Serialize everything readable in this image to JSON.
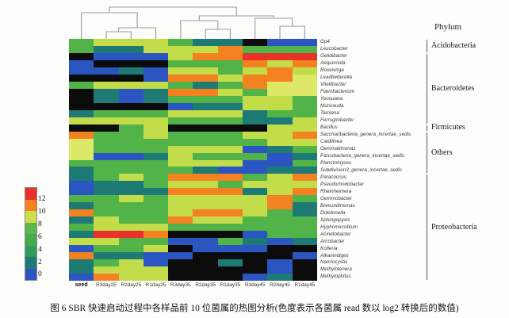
{
  "caption": "图 6   SBR 快速启动过程中各样品前 10 位菌属的热图分析(色度表示各菌属 read 数以 log2 转换后的数值)",
  "phylum_header": "Phylum",
  "chart_data": {
    "type": "heatmap",
    "title": "",
    "value_meaning": "log2 transformed read counts per genus",
    "columns": [
      "seed",
      "R3day25",
      "R2day25",
      "R1day25",
      "R3day35",
      "R2day35",
      "R1day35",
      "R3day45",
      "R2day45",
      "R1day45"
    ],
    "rows": [
      "Gp4",
      "Leucobacter",
      "Gelidibacter",
      "Aequorivita",
      "Roseivirga",
      "Leadbetterella",
      "Vitellibacter",
      "Flavobacterium",
      "Yeosuana",
      "Muricauda",
      "Tamlana",
      "Ferruginibacter",
      "Bacillus",
      "Saccharibacteria_genera_incertae_sedis",
      "Caldilinea",
      "Gemmatimonas",
      "Parcubacteria_genera_incertae_sedis",
      "Planctomyces",
      "Subdivision3_genera_incertae_sedis",
      "Paracoccus",
      "Pseudorhodobacter",
      "Rheinheimera",
      "Gemmobacter",
      "Brevundimonas",
      "Dokdonella",
      "Sphingopyxis",
      "Hyphomicrobium",
      "Acinetobacter",
      "Arcobacter",
      "Kofleria",
      "Alkanindiges",
      "Nannocystis",
      "Methylotenera",
      "Methylophilus"
    ],
    "matrix": [
      [
        "G",
        "LG",
        "LG",
        "LG",
        "G",
        "T",
        "T",
        "K",
        "B",
        "B"
      ],
      [
        "G",
        "T",
        "T",
        "LG",
        "LG",
        "LG",
        "O",
        "G",
        "G",
        "G"
      ],
      [
        "K",
        "B",
        "B",
        "B",
        "LG",
        "O",
        "O",
        "R",
        "R",
        "R"
      ],
      [
        "B",
        "K",
        "K",
        "K",
        "G",
        "G",
        "G",
        "O",
        "LG",
        "O"
      ],
      [
        "B",
        "B",
        "T",
        "B",
        "LG",
        "LG",
        "G",
        "LG",
        "O",
        "LG"
      ],
      [
        "K",
        "K",
        "K",
        "B",
        "O",
        "O",
        "LG",
        "O",
        "O",
        "PY"
      ],
      [
        "G",
        "LG",
        "LG",
        "LG",
        "G",
        "T",
        "G",
        "O",
        "PY",
        "PY"
      ],
      [
        "K",
        "T",
        "B",
        "T",
        "O",
        "O",
        "LG",
        "G",
        "PY",
        "PY"
      ],
      [
        "K",
        "T",
        "B",
        "T",
        "G",
        "G",
        "G",
        "LG",
        "LG",
        "G"
      ],
      [
        "K",
        "K",
        "K",
        "K",
        "B",
        "T",
        "T",
        "LG",
        "LG",
        "G"
      ],
      [
        "T",
        "G",
        "G",
        "G",
        "LG",
        "LG",
        "LG",
        "T",
        "G",
        "G"
      ],
      [
        "LG",
        "LG",
        "LG",
        "LG",
        "G",
        "G",
        "G",
        "T",
        "T",
        "LG"
      ],
      [
        "K",
        "K",
        "G",
        "LG",
        "K",
        "K",
        "K",
        "K",
        "LG",
        "LG"
      ],
      [
        "O",
        "G",
        "G",
        "LG",
        "G",
        "G",
        "G",
        "LG",
        "LG",
        "O"
      ],
      [
        "PY",
        "G",
        "G",
        "G",
        "G",
        "G",
        "G",
        "G",
        "LG",
        "LG"
      ],
      [
        "PY",
        "G",
        "G",
        "G",
        "LG",
        "LG",
        "LG",
        "B",
        "T",
        "G"
      ],
      [
        "PY",
        "B",
        "B",
        "T",
        "LG",
        "G",
        "G",
        "G",
        "B",
        "T"
      ],
      [
        "G",
        "G",
        "G",
        "G",
        "LG",
        "LG",
        "LG",
        "B",
        "B",
        "G"
      ],
      [
        "T",
        "G",
        "G",
        "G",
        "G",
        "T",
        "B",
        "B",
        "T",
        "T"
      ],
      [
        "T",
        "G",
        "LG",
        "G",
        "O",
        "O",
        "O",
        "G",
        "LG",
        "O"
      ],
      [
        "B",
        "T",
        "T",
        "G",
        "LG",
        "LG",
        "G",
        "LG",
        "LG",
        "LG"
      ],
      [
        "B",
        "T",
        "T",
        "T",
        "O",
        "O",
        "O",
        "T",
        "LG",
        "O"
      ],
      [
        "G",
        "G",
        "LG",
        "G",
        "LG",
        "LG",
        "LG",
        "LG",
        "O",
        "G"
      ],
      [
        "T",
        "G",
        "G",
        "G",
        "LG",
        "LG",
        "LG",
        "LG",
        "O",
        "T"
      ],
      [
        "O",
        "G",
        "G",
        "G",
        "LG",
        "O",
        "O",
        "LG",
        "G",
        "T"
      ],
      [
        "T",
        "LG",
        "G",
        "G",
        "O",
        "LG",
        "LG",
        "G",
        "G",
        "G"
      ],
      [
        "G",
        "LG",
        "LG",
        "LG",
        "G",
        "G",
        "G",
        "G",
        "G",
        "G"
      ],
      [
        "T",
        "R",
        "R",
        "O",
        "K",
        "K",
        "K",
        "B",
        "G",
        "G"
      ],
      [
        "LG",
        "LG",
        "G",
        "G",
        "B",
        "B",
        "G",
        "T",
        "B",
        "T"
      ],
      [
        "B",
        "G",
        "G",
        "LG",
        "K",
        "B",
        "B",
        "B",
        "K",
        "K"
      ],
      [
        "O",
        "T",
        "T",
        "B",
        "B",
        "K",
        "K",
        "K",
        "K",
        "B"
      ],
      [
        "T",
        "G",
        "LG",
        "B",
        "K",
        "K",
        "T",
        "K",
        "B",
        "K"
      ],
      [
        "T",
        "LG",
        "LG",
        "LG",
        "K",
        "K",
        "K",
        "K",
        "B",
        "K"
      ],
      [
        "B",
        "O",
        "LG",
        "LG",
        "K",
        "K",
        "K",
        "B",
        "T",
        "K"
      ]
    ],
    "palette": {
      "K": "#0c0c0c",
      "B": "#2b55c0",
      "T": "#1d7a75",
      "G": "#52b349",
      "LG": "#c3dc49",
      "PY": "#dde768",
      "O": "#f58220",
      "R": "#e8312a"
    },
    "legend": {
      "stops_top_to_bottom": [
        "#e8312a",
        "#f58220",
        "#cede4a",
        "#5cb84a",
        "#45ab4e",
        "#2f9b5f",
        "#1d7a75",
        "#2b55c0"
      ],
      "tick_labels": [
        "12",
        "10",
        "8",
        "6",
        "4",
        "2",
        "0"
      ],
      "range": [
        0,
        13
      ]
    },
    "phylum_groups": [
      {
        "name": "Acidobacteria",
        "row_start": 1,
        "row_end": 2
      },
      {
        "name": "Bacteroidetes",
        "row_start": 3,
        "row_end": 12
      },
      {
        "name": "Firmicutes",
        "row_start": 13,
        "row_end": 13
      },
      {
        "name": "Others",
        "row_start": 14,
        "row_end": 19
      },
      {
        "name": "Proteobacteria",
        "row_start": 20,
        "row_end": 34
      }
    ],
    "dendrogram_topology": "(((seed,((R3day25,R2day25),R1day25)),((R3day35,(R2day35,R1day35)),(R3day45,(R2day45,R1day45))))",
    "grid": false,
    "legend_position": "left"
  }
}
